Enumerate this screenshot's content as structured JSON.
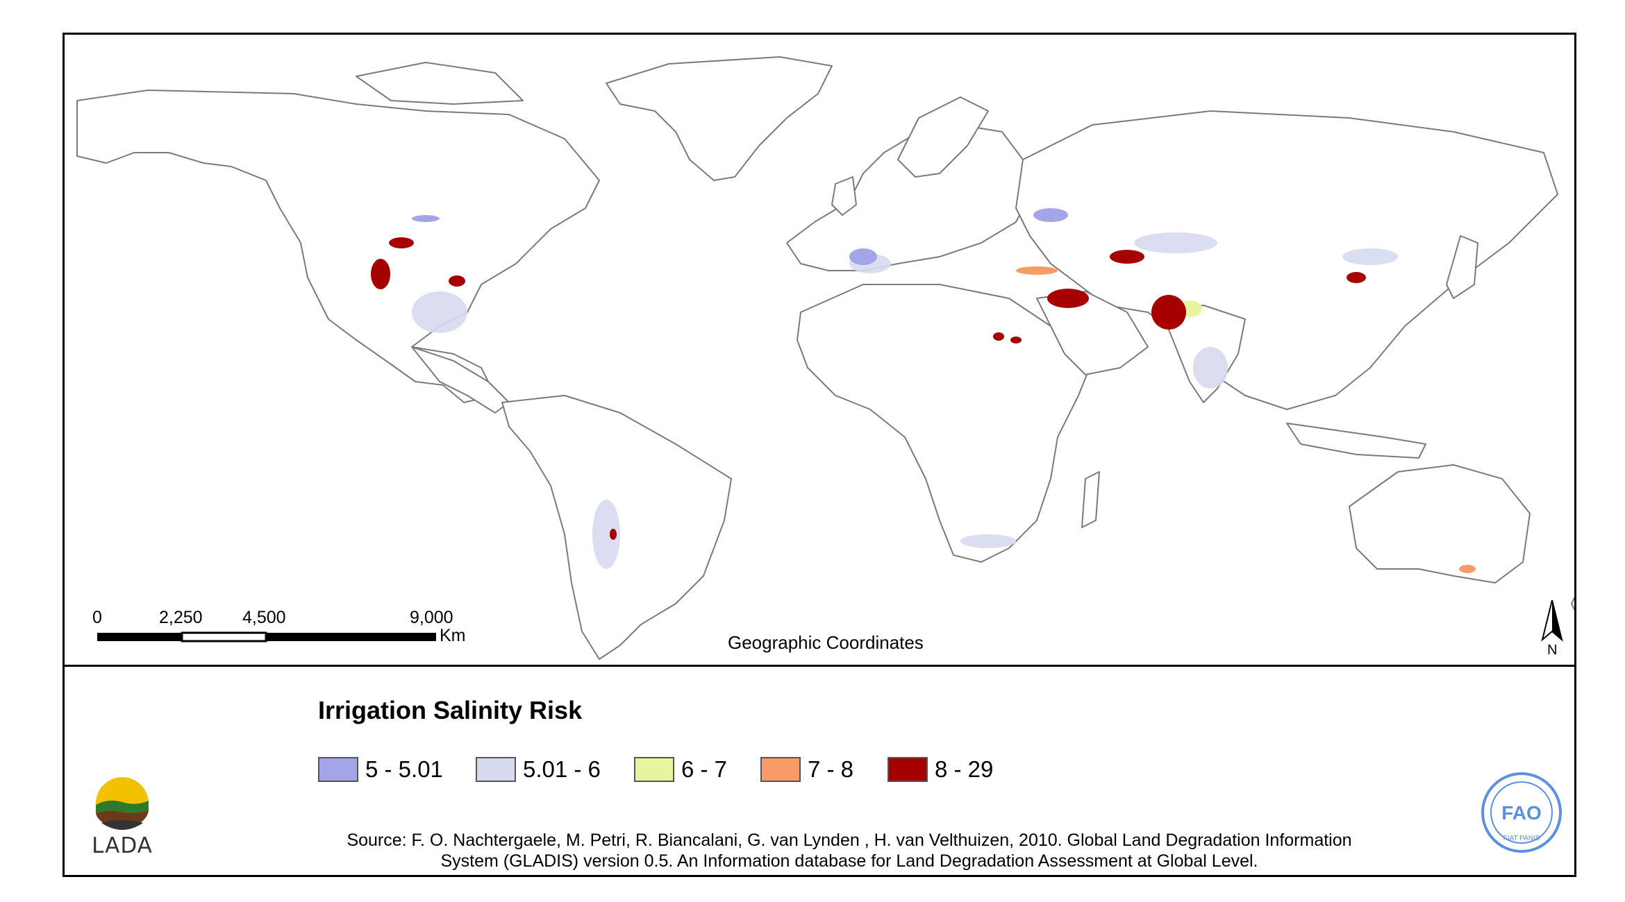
{
  "map": {
    "coordinate_label": "Geographic Coordinates",
    "scale_bar": {
      "ticks": [
        "0",
        "2,250",
        "4,500",
        "9,000"
      ],
      "unit": "Km"
    },
    "north_arrow_label": "N",
    "land_fill": "#ffffff",
    "border_color": "#7a7a7a"
  },
  "legend": {
    "title": "Irrigation Salinity Risk",
    "classes": [
      {
        "label": "5 - 5.01",
        "color": "#a4a4e8"
      },
      {
        "label": "5.01 - 6",
        "color": "#d7d9f0"
      },
      {
        "label": "6 - 7",
        "color": "#e8f5a0"
      },
      {
        "label": "7 - 8",
        "color": "#f99b67"
      },
      {
        "label": "8 - 29",
        "color": "#a60000"
      }
    ]
  },
  "source": {
    "line1": "Source: F. O. Nachtergaele, M. Petri, R. Biancalani, G. van Lynden , H. van Velthuizen, 2010. Global Land Degradation Information",
    "line2": "System (GLADIS) version 0.5. An Information database for Land Degradation Assessment at Global Level."
  },
  "logos": {
    "lada_text": "LADA",
    "fao_text": "FAO",
    "fao_motto": "FIAT PANIS",
    "fao_color": "#5b8fe0"
  }
}
